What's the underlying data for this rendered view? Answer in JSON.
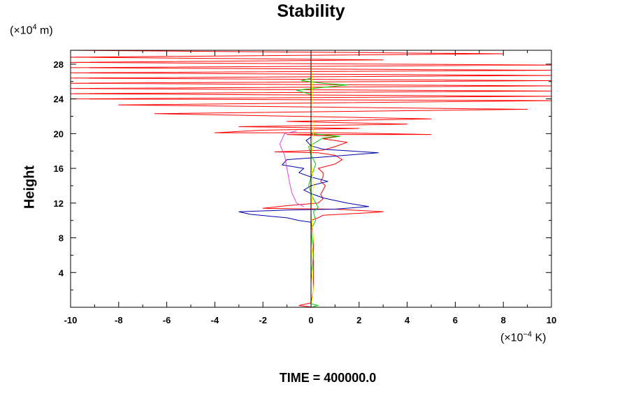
{
  "chart_data": {
    "type": "line",
    "title": "Stability",
    "ylabel": "Height",
    "yunit_prefix": "(×10",
    "yunit_exp": "4",
    "yunit_suffix": " m)",
    "xunit_prefix": "(×10",
    "xunit_exp": "−4",
    "xunit_suffix": " K)",
    "footer": "TIME = 400000.0",
    "xlim": [
      -10,
      10
    ],
    "ylim": [
      0,
      29.6
    ],
    "xticks": [
      -10,
      -8,
      -6,
      -4,
      -2,
      0,
      2,
      4,
      6,
      8,
      10
    ],
    "yticks": [
      4,
      8,
      12,
      16,
      20,
      24,
      28
    ],
    "legend": "none",
    "grid": false,
    "series": [
      {
        "color": "#ff0000",
        "points": [
          [
            0.1,
            0.0
          ],
          [
            -0.5,
            0.2
          ],
          [
            0.0,
            0.5
          ],
          [
            0.1,
            2
          ],
          [
            0.1,
            5
          ],
          [
            0.1,
            8
          ],
          [
            0.0,
            10
          ],
          [
            0.3,
            10.3
          ],
          [
            0.5,
            10.6
          ],
          [
            2.5,
            10.9
          ],
          [
            3.0,
            11.0
          ],
          [
            1.0,
            11.3
          ],
          [
            -2.0,
            11.4
          ],
          [
            -1.0,
            11.7
          ],
          [
            0.3,
            12.0
          ],
          [
            0.5,
            12.5
          ],
          [
            0.4,
            13.0
          ],
          [
            0.5,
            13.5
          ],
          [
            0.6,
            14.0
          ],
          [
            0.4,
            14.5
          ],
          [
            0.5,
            15.0
          ],
          [
            0.5,
            15.5
          ],
          [
            0.3,
            16.0
          ],
          [
            1.0,
            16.5
          ],
          [
            1.3,
            17.0
          ],
          [
            1.0,
            17.5
          ],
          [
            0.3,
            17.8
          ],
          [
            -1.5,
            17.9
          ],
          [
            0.5,
            18.1
          ],
          [
            1.0,
            18.5
          ],
          [
            1.5,
            19.0
          ],
          [
            0.5,
            19.4
          ],
          [
            1.2,
            19.7
          ],
          [
            -1.0,
            19.9
          ],
          [
            5.0,
            19.9
          ],
          [
            1.0,
            20.1
          ],
          [
            -4.0,
            20.1
          ],
          [
            -2.0,
            20.4
          ],
          [
            2.0,
            20.6
          ],
          [
            -3.0,
            20.8
          ],
          [
            4.0,
            21.1
          ],
          [
            -1.0,
            21.4
          ],
          [
            5.0,
            21.7
          ],
          [
            -6.5,
            22.3
          ],
          [
            9.0,
            22.8
          ],
          [
            -8.0,
            23.3
          ],
          [
            10,
            23.8
          ],
          [
            -10,
            24.0
          ],
          [
            10,
            24.3
          ],
          [
            -10,
            24.6
          ],
          [
            10,
            24.9
          ],
          [
            -10,
            25.2
          ],
          [
            10,
            25.5
          ],
          [
            -10,
            25.8
          ],
          [
            10,
            26.1
          ],
          [
            -10,
            26.4
          ],
          [
            10,
            26.7
          ],
          [
            -10,
            27.0
          ],
          [
            10,
            27.3
          ],
          [
            -10,
            27.6
          ],
          [
            10,
            27.9
          ],
          [
            -10,
            28.2
          ],
          [
            3.0,
            28.5
          ],
          [
            -10,
            28.8
          ],
          [
            8.0,
            29.2
          ],
          [
            -10,
            29.6
          ]
        ]
      },
      {
        "color": "#0000aa",
        "points": [
          [
            0.0,
            0.0
          ],
          [
            0.0,
            2
          ],
          [
            0.0,
            6
          ],
          [
            0.0,
            9.8
          ],
          [
            -0.5,
            10.0
          ],
          [
            -1.0,
            10.3
          ],
          [
            -2.5,
            10.7
          ],
          [
            -3.0,
            11.0
          ],
          [
            -1.0,
            11.2
          ],
          [
            1.0,
            11.3
          ],
          [
            2.4,
            11.6
          ],
          [
            1.5,
            12.0
          ],
          [
            0.5,
            12.6
          ],
          [
            0.0,
            13.1
          ],
          [
            -0.3,
            13.5
          ],
          [
            0.0,
            14.0
          ],
          [
            0.7,
            14.5
          ],
          [
            0.0,
            15.0
          ],
          [
            -0.5,
            15.5
          ],
          [
            -0.3,
            16.0
          ],
          [
            -1.2,
            16.4
          ],
          [
            -1.0,
            17.0
          ],
          [
            0.5,
            17.3
          ],
          [
            2.8,
            17.8
          ],
          [
            0.5,
            18.2
          ],
          [
            0.0,
            18.6
          ],
          [
            -0.2,
            19.2
          ],
          [
            0.0,
            19.6
          ],
          [
            0.0,
            29.6
          ]
        ]
      },
      {
        "color": "#00cc00",
        "points": [
          [
            0.0,
            0.0
          ],
          [
            0.3,
            0.2
          ],
          [
            0.0,
            0.4
          ],
          [
            0.0,
            3
          ],
          [
            0.1,
            6
          ],
          [
            0.0,
            9.0
          ],
          [
            0.2,
            10.0
          ],
          [
            0.1,
            11.0
          ],
          [
            0.3,
            11.5
          ],
          [
            0.1,
            12.5
          ],
          [
            -0.1,
            14.0
          ],
          [
            0.0,
            15.0
          ],
          [
            0.2,
            16.5
          ],
          [
            0.0,
            17.5
          ],
          [
            -0.1,
            18.5
          ],
          [
            0.5,
            19.5
          ],
          [
            1.2,
            19.7
          ],
          [
            0.0,
            20.0
          ],
          [
            0.0,
            24.5
          ],
          [
            -0.6,
            25.0
          ],
          [
            0.4,
            25.3
          ],
          [
            1.5,
            25.6
          ],
          [
            0.5,
            25.8
          ],
          [
            -0.4,
            26.1
          ],
          [
            0.0,
            26.4
          ],
          [
            0.0,
            29.6
          ]
        ]
      },
      {
        "color": "#ffee00",
        "points": [
          [
            0.0,
            0.0
          ],
          [
            0.1,
            2
          ],
          [
            0.0,
            5
          ],
          [
            0.1,
            8
          ],
          [
            0.0,
            11
          ],
          [
            0.1,
            14
          ],
          [
            0.0,
            17
          ],
          [
            0.1,
            20
          ],
          [
            0.0,
            29.6
          ]
        ]
      },
      {
        "color": "#dd44dd",
        "points": [
          [
            -0.3,
            11.6
          ],
          [
            -0.6,
            12.0
          ],
          [
            -0.8,
            13.2
          ],
          [
            -0.9,
            14.5
          ],
          [
            -1.0,
            16.0
          ],
          [
            -1.1,
            17.5
          ],
          [
            -1.3,
            18.8
          ],
          [
            -1.1,
            20.0
          ],
          [
            -0.6,
            20.3
          ]
        ]
      }
    ]
  }
}
